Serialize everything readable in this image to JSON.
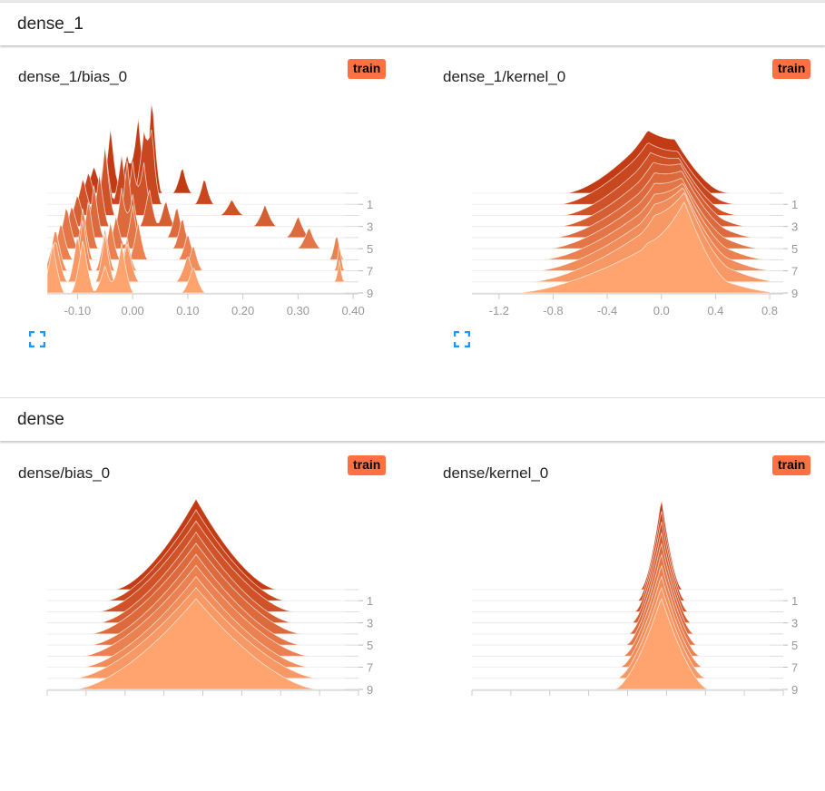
{
  "sections": [
    {
      "title": "dense_1"
    },
    {
      "title": "dense"
    }
  ],
  "run_badge": "train",
  "colors": {
    "back": "#c23b15",
    "front": "#ffa46e",
    "badge": "#ff7043",
    "icon": "#2196f3"
  },
  "chart_data": [
    {
      "type": "ridgeline",
      "title": "dense_1/bias_0",
      "xlim": [
        -0.155,
        0.385
      ],
      "ticks": [
        "-0.10",
        "0.00",
        "0.10",
        "0.20",
        "0.30",
        "0.40"
      ],
      "tick_values": [
        -0.1,
        0,
        0.1,
        0.2,
        0.3,
        0.4
      ],
      "step_labels": [
        "1",
        "3",
        "5",
        "7",
        "9"
      ],
      "steps": [
        [
          [
            -0.07,
            0.01,
            0.5
          ],
          [
            -0.04,
            0.008,
            1.2
          ],
          [
            -0.01,
            0.01,
            0.7
          ],
          [
            0.01,
            0.008,
            1.4
          ],
          [
            0.035,
            0.008,
            1.8
          ],
          [
            0.09,
            0.008,
            0.5
          ]
        ],
        [
          [
            -0.08,
            0.01,
            0.6
          ],
          [
            -0.05,
            0.008,
            1.1
          ],
          [
            -0.02,
            0.008,
            0.9
          ],
          [
            0.02,
            0.01,
            1.3
          ],
          [
            0.035,
            0.008,
            1.2
          ],
          [
            0.13,
            0.008,
            0.5
          ]
        ],
        [
          [
            -0.09,
            0.01,
            0.7
          ],
          [
            -0.05,
            0.008,
            1.3
          ],
          [
            0.0,
            0.008,
            1.0
          ],
          [
            0.02,
            0.008,
            1.0
          ],
          [
            0.18,
            0.01,
            0.3
          ]
        ],
        [
          [
            -0.1,
            0.01,
            0.6
          ],
          [
            -0.06,
            0.008,
            1.0
          ],
          [
            -0.01,
            0.008,
            1.2
          ],
          [
            0.03,
            0.008,
            0.7
          ],
          [
            0.06,
            0.008,
            0.5
          ],
          [
            0.24,
            0.01,
            0.4
          ]
        ],
        [
          [
            -0.11,
            0.01,
            0.6
          ],
          [
            -0.07,
            0.008,
            1.0
          ],
          [
            -0.02,
            0.008,
            0.9
          ],
          [
            0.0,
            0.008,
            0.8
          ],
          [
            0.08,
            0.008,
            0.6
          ],
          [
            0.3,
            0.01,
            0.4
          ]
        ],
        [
          [
            -0.12,
            0.01,
            0.8
          ],
          [
            -0.08,
            0.008,
            0.9
          ],
          [
            -0.03,
            0.008,
            0.6
          ],
          [
            0.0,
            0.008,
            0.8
          ],
          [
            0.09,
            0.008,
            0.6
          ],
          [
            0.32,
            0.01,
            0.4
          ]
        ],
        [
          [
            -0.13,
            0.01,
            0.7
          ],
          [
            -0.09,
            0.008,
            1.0
          ],
          [
            -0.04,
            0.008,
            0.7
          ],
          [
            0.01,
            0.008,
            0.7
          ],
          [
            0.1,
            0.008,
            0.5
          ],
          [
            0.37,
            0.006,
            0.5
          ]
        ],
        [
          [
            -0.14,
            0.01,
            0.8
          ],
          [
            -0.09,
            0.008,
            1.0
          ],
          [
            -0.05,
            0.008,
            0.8
          ],
          [
            -0.01,
            0.008,
            0.6
          ],
          [
            0.11,
            0.008,
            0.5
          ],
          [
            0.375,
            0.004,
            0.5
          ]
        ],
        [
          [
            -0.14,
            0.01,
            0.8
          ],
          [
            -0.1,
            0.008,
            0.9
          ],
          [
            -0.05,
            0.008,
            0.9
          ],
          [
            -0.01,
            0.01,
            0.7
          ],
          [
            0.1,
            0.01,
            0.5
          ],
          [
            0.375,
            0.004,
            0.4
          ]
        ],
        [
          [
            -0.145,
            0.01,
            0.9
          ],
          [
            -0.09,
            0.01,
            1.0
          ],
          [
            -0.05,
            0.01,
            0.5
          ],
          [
            -0.02,
            0.01,
            0.9
          ],
          [
            0.11,
            0.01,
            0.5
          ]
        ]
      ]
    },
    {
      "type": "ridgeline",
      "title": "dense_1/kernel_0",
      "xlim": [
        -1.4,
        0.8
      ],
      "ticks": [
        "-1.2",
        "-0.8",
        "-0.4",
        "0.0",
        "0.4",
        "0.8"
      ],
      "tick_values": [
        -1.2,
        -0.8,
        -0.4,
        0,
        0.4,
        0.8
      ],
      "step_labels": [
        "1",
        "3",
        "5",
        "7",
        "9"
      ],
      "steps": [
        [
          [
            -0.1,
            0.28,
            1.0
          ],
          [
            0.1,
            0.15,
            0.4
          ]
        ],
        [
          [
            -0.1,
            0.3,
            1.0
          ],
          [
            0.12,
            0.15,
            0.4
          ]
        ],
        [
          [
            -0.08,
            0.3,
            1.0
          ],
          [
            0.13,
            0.15,
            0.45
          ]
        ],
        [
          [
            -0.06,
            0.32,
            1.0
          ],
          [
            0.14,
            0.15,
            0.5
          ]
        ],
        [
          [
            -0.05,
            0.34,
            1.0
          ],
          [
            0.15,
            0.15,
            0.55
          ]
        ],
        [
          [
            -0.05,
            0.36,
            1.0
          ],
          [
            0.15,
            0.15,
            0.6
          ]
        ],
        [
          [
            -0.05,
            0.38,
            1.0
          ],
          [
            0.16,
            0.15,
            0.7
          ]
        ],
        [
          [
            -0.05,
            0.4,
            1.0
          ],
          [
            0.16,
            0.15,
            0.8
          ]
        ],
        [
          [
            -0.05,
            0.42,
            1.0
          ],
          [
            0.17,
            0.15,
            0.9
          ]
        ],
        [
          [
            -0.1,
            0.45,
            0.8
          ],
          [
            0.17,
            0.15,
            1.1
          ]
        ]
      ]
    },
    {
      "type": "ridgeline",
      "title": "dense/bias_0",
      "xlim": [
        -0.4,
        0.4
      ],
      "ticks": [],
      "tick_values": [],
      "step_labels": [
        "1",
        "3",
        "5",
        "7",
        "9"
      ],
      "steps": [
        [
          [
            0.0,
            0.1,
            1.0
          ]
        ],
        [
          [
            0.0,
            0.11,
            1.0
          ]
        ],
        [
          [
            0.0,
            0.12,
            1.0
          ]
        ],
        [
          [
            0.0,
            0.12,
            1.0
          ]
        ],
        [
          [
            0.0,
            0.13,
            1.0
          ]
        ],
        [
          [
            0.0,
            0.13,
            1.0
          ]
        ],
        [
          [
            0.0,
            0.14,
            1.0
          ]
        ],
        [
          [
            0.0,
            0.14,
            1.0
          ]
        ],
        [
          [
            0.0,
            0.15,
            1.0
          ]
        ],
        [
          [
            0.0,
            0.15,
            1.0
          ]
        ]
      ]
    },
    {
      "type": "ridgeline",
      "title": "dense/kernel_0",
      "xlim": [
        -1.4,
        0.8
      ],
      "ticks": [],
      "tick_values": [],
      "step_labels": [
        "1",
        "3",
        "5",
        "7",
        "9"
      ],
      "steps": [
        [
          [
            0.0,
            0.07,
            1.0
          ]
        ],
        [
          [
            0.0,
            0.08,
            1.0
          ]
        ],
        [
          [
            0.0,
            0.09,
            1.0
          ]
        ],
        [
          [
            0.0,
            0.1,
            1.0
          ]
        ],
        [
          [
            0.0,
            0.11,
            1.0
          ]
        ],
        [
          [
            0.0,
            0.12,
            1.0
          ]
        ],
        [
          [
            0.0,
            0.13,
            1.0
          ]
        ],
        [
          [
            0.0,
            0.14,
            1.0
          ]
        ],
        [
          [
            0.0,
            0.15,
            1.0
          ]
        ],
        [
          [
            0.0,
            0.16,
            1.0
          ]
        ]
      ]
    }
  ]
}
